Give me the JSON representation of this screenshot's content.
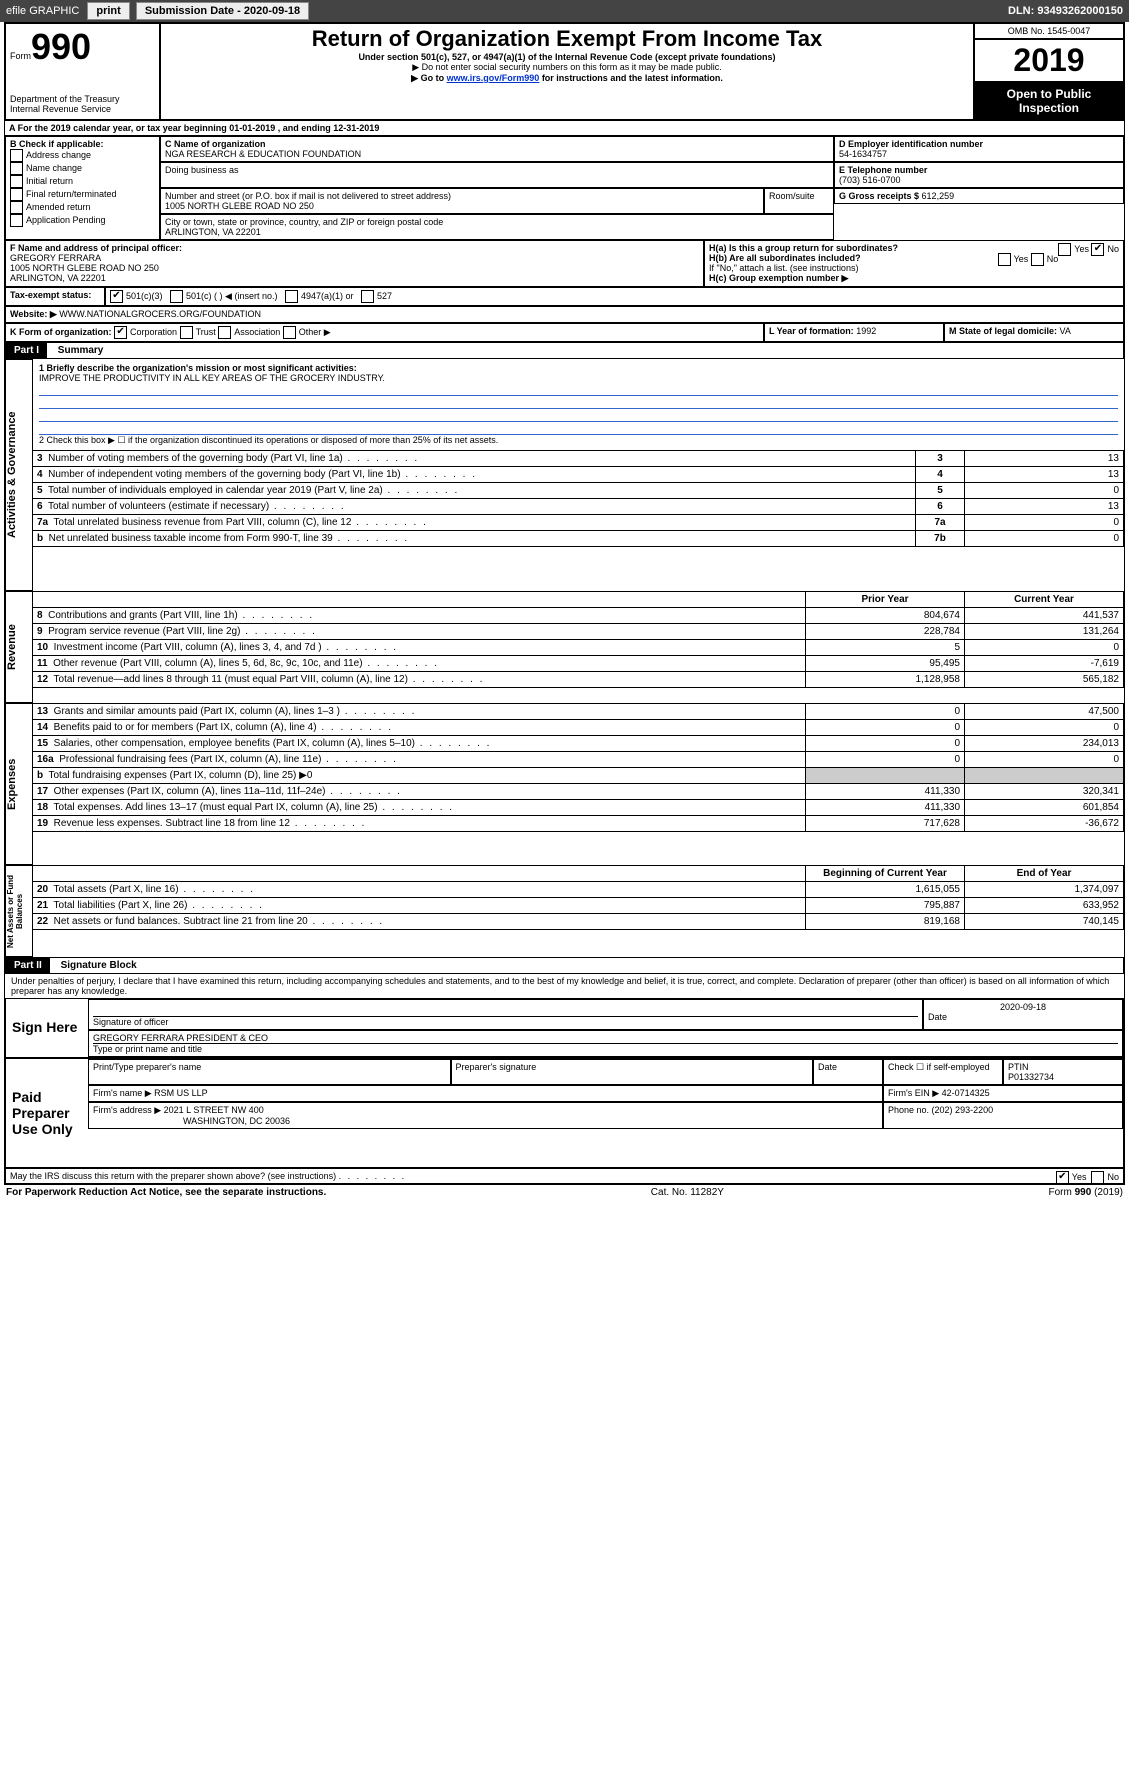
{
  "topbar": {
    "efile": "efile GRAPHIC",
    "print": "print",
    "submission_label": "Submission Date - ",
    "submission_date": "2020-09-18",
    "dln_label": "DLN: ",
    "dln": "93493262000150"
  },
  "header": {
    "form_label": "Form",
    "form_number": "990",
    "title": "Return of Organization Exempt From Income Tax",
    "subtitle": "Under section 501(c), 527, or 4947(a)(1) of the Internal Revenue Code (except private foundations)",
    "note1": "▶ Do not enter social security numbers on this form as it may be made public.",
    "note2_pre": "▶ Go to ",
    "note2_link": "www.irs.gov/Form990",
    "note2_post": " for instructions and the latest information.",
    "dept": "Department of the Treasury\nInternal Revenue Service",
    "omb": "OMB No. 1545-0047",
    "year": "2019",
    "open": "Open to Public Inspection"
  },
  "sectionA": {
    "line": "A For the 2019 calendar year, or tax year beginning 01-01-2019    , and ending 12-31-2019",
    "B_label": "B Check if applicable:",
    "B_items": [
      "Address change",
      "Name change",
      "Initial return",
      "Final return/terminated",
      "Amended return",
      "Application Pending"
    ],
    "C_label": "C Name of organization",
    "C_name": "NGA RESEARCH & EDUCATION FOUNDATION",
    "dba_label": "Doing business as",
    "addr_label": "Number and street (or P.O. box if mail is not delivered to street address)",
    "addr": "1005 NORTH GLEBE ROAD NO 250",
    "room": "Room/suite",
    "city_label": "City or town, state or province, country, and ZIP or foreign postal code",
    "city": "ARLINGTON, VA  22201",
    "D_label": "D Employer identification number",
    "D_val": "54-1634757",
    "E_label": "E Telephone number",
    "E_val": "(703) 516-0700",
    "G_label": "G Gross receipts $ ",
    "G_val": "612,259",
    "F_label": "F  Name and address of principal officer:",
    "F_name": "GREGORY FERRARA",
    "F_addr1": "1005 NORTH GLEBE ROAD NO 250",
    "F_addr2": "ARLINGTON, VA  22201",
    "Ha": "H(a)  Is this a group return for subordinates?",
    "Hb": "H(b)  Are all subordinates included?",
    "Hb_note": "If \"No,\" attach a list. (see instructions)",
    "Hc": "H(c)  Group exemption number ▶",
    "I_label": "Tax-exempt status:",
    "I_opt1": "501(c)(3)",
    "I_opt2": "501(c) (   ) ◀ (insert no.)",
    "I_opt3": "4947(a)(1) or",
    "I_opt4": "527",
    "J_label": "Website: ▶",
    "J_val": "WWW.NATIONALGROCERS.ORG/FOUNDATION",
    "K_label": "K Form of organization:",
    "K_opts": [
      "Corporation",
      "Trust",
      "Association",
      "Other ▶"
    ],
    "L_label": "L Year of formation: ",
    "L_val": "1992",
    "M_label": "M State of legal domicile: ",
    "M_val": "VA"
  },
  "part1": {
    "part_label": "Part I",
    "title": "Summary",
    "q1": "1  Briefly describe the organization's mission or most significant activities:",
    "q1_text": "IMPROVE THE PRODUCTIVITY IN ALL KEY AREAS OF THE GROCERY INDUSTRY.",
    "q2": "2   Check this box ▶ ☐  if the organization discontinued its operations or disposed of more than 25% of its net assets.",
    "vlabels": {
      "gov": "Activities & Governance",
      "rev": "Revenue",
      "exp": "Expenses",
      "net": "Net Assets or Fund Balances"
    },
    "gov_rows": [
      {
        "n": "3",
        "label": "Number of voting members of the governing body (Part VI, line 1a)",
        "box": "3",
        "val": "13"
      },
      {
        "n": "4",
        "label": "Number of independent voting members of the governing body (Part VI, line 1b)",
        "box": "4",
        "val": "13"
      },
      {
        "n": "5",
        "label": "Total number of individuals employed in calendar year 2019 (Part V, line 2a)",
        "box": "5",
        "val": "0"
      },
      {
        "n": "6",
        "label": "Total number of volunteers (estimate if necessary)",
        "box": "6",
        "val": "13"
      },
      {
        "n": "7a",
        "label": "Total unrelated business revenue from Part VIII, column (C), line 12",
        "box": "7a",
        "val": "0"
      },
      {
        "n": " b",
        "label": "Net unrelated business taxable income from Form 990-T, line 39",
        "box": "7b",
        "val": "0"
      }
    ],
    "col_headers": {
      "prior": "Prior Year",
      "current": "Current Year"
    },
    "rev_rows": [
      {
        "n": "8",
        "label": "Contributions and grants (Part VIII, line 1h)",
        "prior": "804,674",
        "current": "441,537"
      },
      {
        "n": "9",
        "label": "Program service revenue (Part VIII, line 2g)",
        "prior": "228,784",
        "current": "131,264"
      },
      {
        "n": "10",
        "label": "Investment income (Part VIII, column (A), lines 3, 4, and 7d )",
        "prior": "5",
        "current": "0"
      },
      {
        "n": "11",
        "label": "Other revenue (Part VIII, column (A), lines 5, 6d, 8c, 9c, 10c, and 11e)",
        "prior": "95,495",
        "current": "-7,619"
      },
      {
        "n": "12",
        "label": "Total revenue—add lines 8 through 11 (must equal Part VIII, column (A), line 12)",
        "prior": "1,128,958",
        "current": "565,182"
      }
    ],
    "exp_rows": [
      {
        "n": "13",
        "label": "Grants and similar amounts paid (Part IX, column (A), lines 1–3 )",
        "prior": "0",
        "current": "47,500"
      },
      {
        "n": "14",
        "label": "Benefits paid to or for members (Part IX, column (A), line 4)",
        "prior": "0",
        "current": "0"
      },
      {
        "n": "15",
        "label": "Salaries, other compensation, employee benefits (Part IX, column (A), lines 5–10)",
        "prior": "0",
        "current": "234,013"
      },
      {
        "n": "16a",
        "label": "Professional fundraising fees (Part IX, column (A), line 11e)",
        "prior": "0",
        "current": "0"
      },
      {
        "n": "b",
        "label": "Total fundraising expenses (Part IX, column (D), line 25) ▶0",
        "prior": "",
        "current": ""
      },
      {
        "n": "17",
        "label": "Other expenses (Part IX, column (A), lines 11a–11d, 11f–24e)",
        "prior": "411,330",
        "current": "320,341"
      },
      {
        "n": "18",
        "label": "Total expenses. Add lines 13–17 (must equal Part IX, column (A), line 25)",
        "prior": "411,330",
        "current": "601,854"
      },
      {
        "n": "19",
        "label": "Revenue less expenses. Subtract line 18 from line 12",
        "prior": "717,628",
        "current": "-36,672"
      }
    ],
    "net_headers": {
      "begin": "Beginning of Current Year",
      "end": "End of Year"
    },
    "net_rows": [
      {
        "n": "20",
        "label": "Total assets (Part X, line 16)",
        "prior": "1,615,055",
        "current": "1,374,097"
      },
      {
        "n": "21",
        "label": "Total liabilities (Part X, line 26)",
        "prior": "795,887",
        "current": "633,952"
      },
      {
        "n": "22",
        "label": "Net assets or fund balances. Subtract line 21 from line 20",
        "prior": "819,168",
        "current": "740,145"
      }
    ]
  },
  "part2": {
    "part_label": "Part II",
    "title": "Signature Block",
    "declaration": "Under penalties of perjury, I declare that I have examined this return, including accompanying schedules and statements, and to the best of my knowledge and belief, it is true, correct, and complete. Declaration of preparer (other than officer) is based on all information of which preparer has any knowledge.",
    "sign_here": "Sign Here",
    "sig_officer": "Signature of officer",
    "sig_date": "2020-09-18",
    "date_label": "Date",
    "officer_name": "GREGORY FERRARA  PRESIDENT & CEO",
    "type_name": "Type or print name and title",
    "paid": "Paid Preparer Use Only",
    "prep_name_label": "Print/Type preparer's name",
    "prep_sig_label": "Preparer's signature",
    "prep_date_label": "Date",
    "self_emp": "Check ☐ if self-employed",
    "ptin_label": "PTIN",
    "ptin": "P01332734",
    "firm_name_label": "Firm's name    ▶ ",
    "firm_name": "RSM US LLP",
    "firm_ein_label": "Firm's EIN ▶ ",
    "firm_ein": "42-0714325",
    "firm_addr_label": "Firm's address ▶ ",
    "firm_addr1": "2021 L STREET NW 400",
    "firm_addr2": "WASHINGTON, DC  20036",
    "phone_label": "Phone no. ",
    "phone": "(202) 293-2200",
    "discuss": "May the IRS discuss this return with the preparer shown above? (see instructions)",
    "yes": "Yes",
    "no": "No"
  },
  "footer": {
    "left": "For Paperwork Reduction Act Notice, see the separate instructions.",
    "mid": "Cat. No. 11282Y",
    "right": "Form 990 (2019)"
  }
}
